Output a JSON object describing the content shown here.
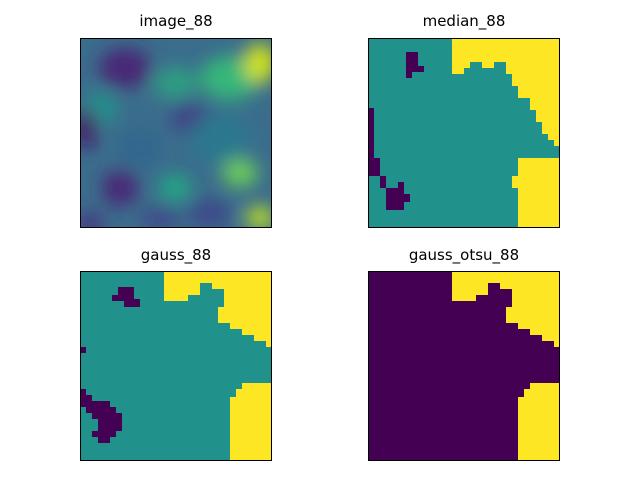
{
  "figure": {
    "panels": [
      {
        "title": "image_88"
      },
      {
        "title": "median_88"
      },
      {
        "title": "gauss_88"
      },
      {
        "title": "gauss_otsu_88"
      }
    ]
  },
  "colors": {
    "dark": "#440154",
    "mid": "#21918c",
    "bright": "#fde725"
  }
}
